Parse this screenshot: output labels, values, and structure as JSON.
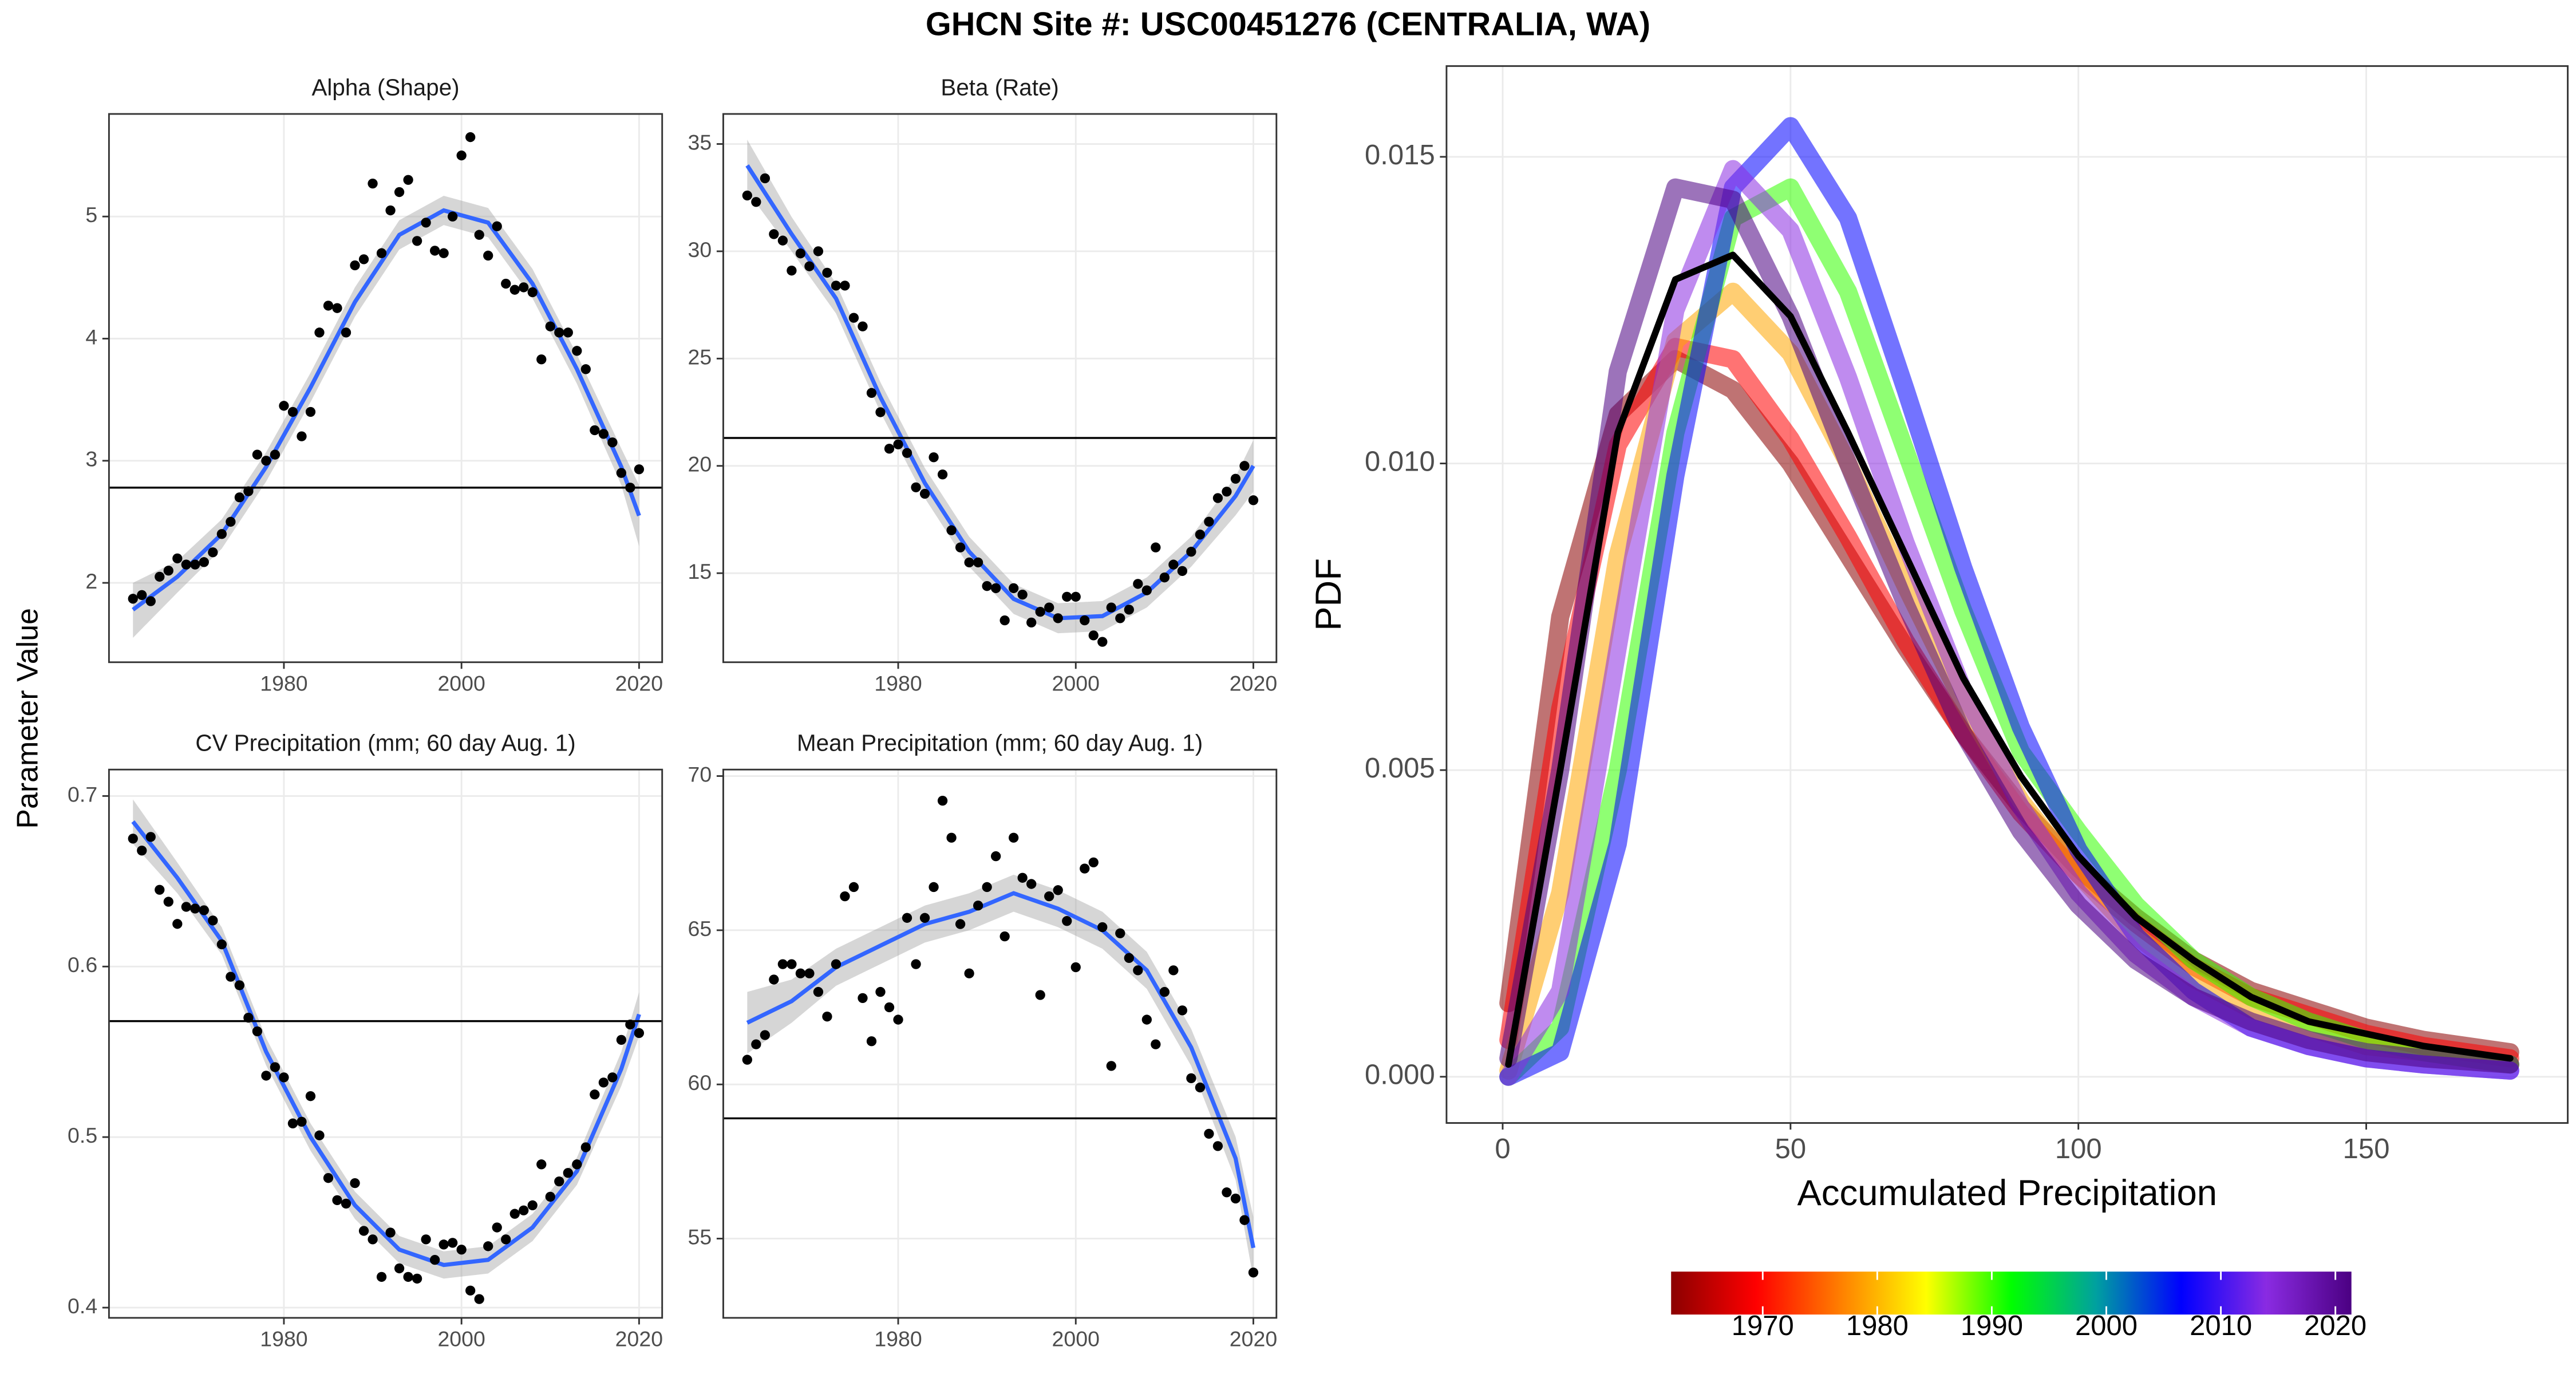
{
  "title": "GHCN Site #: USC00451276 (CENTRALIA, WA)",
  "ylabel": "Parameter Value",
  "chart_data": [
    {
      "type": "scatter",
      "title": "Alpha (Shape)",
      "grid": true,
      "color": "#000000",
      "xlim": [
        1960.3,
        2022.6
      ],
      "xticks": [
        1980,
        2000,
        2020
      ],
      "ylim": [
        1.35,
        5.84
      ],
      "yticks": [
        2,
        3,
        4,
        5
      ],
      "x": [
        1963,
        1964,
        1965,
        1966,
        1967,
        1968,
        1969,
        1970,
        1971,
        1972,
        1973,
        1974,
        1975,
        1976,
        1977,
        1978,
        1979,
        1980,
        1981,
        1982,
        1983,
        1984,
        1985,
        1986,
        1987,
        1988,
        1989,
        1990,
        1991,
        1992,
        1993,
        1994,
        1995,
        1996,
        1997,
        1998,
        1999,
        2000,
        2001,
        2002,
        2003,
        2004,
        2005,
        2006,
        2007,
        2008,
        2009,
        2010,
        2011,
        2012,
        2013,
        2014,
        2015,
        2016,
        2017,
        2018,
        2019,
        2020
      ],
      "values": [
        1.87,
        1.9,
        1.85,
        2.05,
        2.1,
        2.2,
        2.15,
        2.15,
        2.17,
        2.25,
        2.4,
        2.5,
        2.7,
        2.75,
        3.05,
        3.0,
        3.05,
        3.45,
        3.4,
        3.2,
        3.4,
        4.05,
        4.27,
        4.25,
        4.05,
        4.6,
        4.65,
        5.27,
        4.7,
        5.05,
        5.2,
        5.3,
        4.8,
        4.95,
        4.72,
        4.7,
        5.0,
        5.5,
        5.65,
        4.85,
        4.68,
        4.92,
        4.45,
        4.4,
        4.42,
        4.38,
        3.83,
        4.1,
        4.05,
        4.05,
        3.9,
        3.75,
        3.25,
        3.22,
        3.15,
        2.9,
        2.78,
        2.93
      ],
      "hline": 2.78,
      "fit": {
        "color": "#3366ff",
        "band_color": "#999999",
        "x": [
          1963,
          1968,
          1973,
          1978,
          1983,
          1988,
          1993,
          1998,
          2003,
          2008,
          2013,
          2018,
          2020
        ],
        "values": [
          1.78,
          2.05,
          2.4,
          2.95,
          3.6,
          4.3,
          4.85,
          5.05,
          4.95,
          4.45,
          3.75,
          2.95,
          2.55
        ],
        "lower": [
          1.55,
          1.92,
          2.28,
          2.83,
          3.48,
          4.18,
          4.73,
          4.93,
          4.83,
          4.33,
          3.63,
          2.8,
          2.3
        ],
        "upper": [
          2.0,
          2.18,
          2.52,
          3.07,
          3.72,
          4.42,
          4.97,
          5.17,
          5.07,
          4.57,
          3.87,
          3.1,
          2.8
        ]
      }
    },
    {
      "type": "scatter",
      "title": "Beta (Rate)",
      "grid": true,
      "color": "#000000",
      "xlim": [
        1960.3,
        2022.6
      ],
      "xticks": [
        1980,
        2000,
        2020
      ],
      "ylim": [
        10.85,
        36.4
      ],
      "yticks": [
        15,
        20,
        25,
        30,
        35
      ],
      "x": [
        1963,
        1964,
        1965,
        1966,
        1967,
        1968,
        1969,
        1970,
        1971,
        1972,
        1973,
        1974,
        1975,
        1976,
        1977,
        1978,
        1979,
        1980,
        1981,
        1982,
        1983,
        1984,
        1985,
        1986,
        1987,
        1988,
        1989,
        1990,
        1991,
        1992,
        1993,
        1994,
        1995,
        1996,
        1997,
        1998,
        1999,
        2000,
        2001,
        2002,
        2003,
        2004,
        2005,
        2006,
        2007,
        2008,
        2009,
        2010,
        2011,
        2012,
        2013,
        2014,
        2015,
        2016,
        2017,
        2018,
        2019,
        2020
      ],
      "values": [
        32.6,
        32.3,
        33.4,
        30.8,
        30.5,
        29.1,
        29.9,
        29.3,
        30.0,
        29.0,
        28.4,
        28.4,
        26.9,
        26.5,
        23.4,
        22.5,
        20.8,
        21.0,
        20.6,
        19.0,
        18.7,
        20.4,
        19.6,
        17.0,
        16.2,
        15.5,
        15.5,
        14.4,
        14.3,
        12.8,
        14.3,
        14.0,
        12.7,
        13.2,
        13.4,
        12.9,
        13.9,
        13.9,
        12.8,
        12.1,
        11.8,
        13.4,
        12.9,
        13.3,
        14.5,
        14.2,
        16.2,
        14.8,
        15.4,
        15.1,
        16.0,
        16.8,
        17.4,
        18.5,
        18.8,
        19.4,
        20.0,
        18.4
      ],
      "hline": 21.3,
      "fit": {
        "color": "#3366ff",
        "band_color": "#999999",
        "x": [
          1963,
          1968,
          1973,
          1978,
          1983,
          1988,
          1993,
          1998,
          2003,
          2008,
          2013,
          2018,
          2020
        ],
        "values": [
          34.0,
          30.8,
          27.8,
          23.2,
          19.2,
          16.0,
          13.8,
          12.9,
          13.0,
          14.1,
          16.0,
          18.6,
          20.0
        ],
        "lower": [
          32.8,
          30.0,
          27.1,
          22.5,
          18.5,
          15.3,
          13.1,
          12.2,
          12.3,
          13.4,
          15.3,
          17.7,
          18.8
        ],
        "upper": [
          35.2,
          31.6,
          28.5,
          23.9,
          19.9,
          16.7,
          14.5,
          13.6,
          13.7,
          14.8,
          16.7,
          19.5,
          21.2
        ]
      }
    },
    {
      "type": "scatter",
      "title": "CV Precipitation (mm; 60 day Aug. 1)",
      "grid": true,
      "color": "#000000",
      "xlim": [
        1960.3,
        2022.6
      ],
      "xticks": [
        1980,
        2000,
        2020
      ],
      "ylim": [
        0.394,
        0.7155
      ],
      "yticks": [
        0.4,
        0.5,
        0.6,
        0.7
      ],
      "x": [
        1963,
        1964,
        1965,
        1966,
        1967,
        1968,
        1969,
        1970,
        1971,
        1972,
        1973,
        1974,
        1975,
        1976,
        1977,
        1978,
        1979,
        1980,
        1981,
        1982,
        1983,
        1984,
        1985,
        1986,
        1987,
        1988,
        1989,
        1990,
        1991,
        1992,
        1993,
        1994,
        1995,
        1996,
        1997,
        1998,
        1999,
        2000,
        2001,
        2002,
        2003,
        2004,
        2005,
        2006,
        2007,
        2008,
        2009,
        2010,
        2011,
        2012,
        2013,
        2014,
        2015,
        2016,
        2017,
        2018,
        2019,
        2020
      ],
      "values": [
        0.675,
        0.668,
        0.676,
        0.645,
        0.638,
        0.625,
        0.635,
        0.634,
        0.633,
        0.627,
        0.613,
        0.594,
        0.589,
        0.57,
        0.562,
        0.536,
        0.541,
        0.535,
        0.508,
        0.509,
        0.524,
        0.501,
        0.476,
        0.463,
        0.461,
        0.473,
        0.445,
        0.44,
        0.418,
        0.444,
        0.423,
        0.418,
        0.417,
        0.44,
        0.428,
        0.437,
        0.438,
        0.434,
        0.41,
        0.405,
        0.436,
        0.447,
        0.44,
        0.455,
        0.457,
        0.46,
        0.484,
        0.465,
        0.474,
        0.479,
        0.484,
        0.494,
        0.525,
        0.532,
        0.535,
        0.557,
        0.566,
        0.561
      ],
      "hline": 0.568,
      "fit": {
        "color": "#3366ff",
        "band_color": "#999999",
        "x": [
          1963,
          1968,
          1973,
          1978,
          1983,
          1988,
          1993,
          1998,
          2003,
          2008,
          2013,
          2018,
          2020
        ],
        "values": [
          0.685,
          0.652,
          0.615,
          0.55,
          0.5,
          0.46,
          0.434,
          0.425,
          0.428,
          0.447,
          0.48,
          0.54,
          0.572
        ],
        "lower": [
          0.672,
          0.643,
          0.607,
          0.542,
          0.492,
          0.452,
          0.426,
          0.417,
          0.42,
          0.439,
          0.472,
          0.53,
          0.559
        ],
        "upper": [
          0.698,
          0.661,
          0.623,
          0.558,
          0.508,
          0.468,
          0.442,
          0.433,
          0.436,
          0.455,
          0.488,
          0.55,
          0.585
        ]
      }
    },
    {
      "type": "scatter",
      "title": "Mean Precipitation (mm; 60 day Aug. 1)",
      "grid": true,
      "color": "#000000",
      "xlim": [
        1960.3,
        2022.6
      ],
      "xticks": [
        1980,
        2000,
        2020
      ],
      "ylim": [
        52.43,
        70.21
      ],
      "yticks": [
        55,
        60,
        65,
        70
      ],
      "x": [
        1963,
        1964,
        1965,
        1966,
        1967,
        1968,
        1969,
        1970,
        1971,
        1972,
        1973,
        1974,
        1975,
        1976,
        1977,
        1978,
        1979,
        1980,
        1981,
        1982,
        1983,
        1984,
        1985,
        1986,
        1987,
        1988,
        1989,
        1990,
        1991,
        1992,
        1993,
        1994,
        1995,
        1996,
        1997,
        1998,
        1999,
        2000,
        2001,
        2002,
        2003,
        2004,
        2005,
        2006,
        2007,
        2008,
        2009,
        2010,
        2011,
        2012,
        2013,
        2014,
        2015,
        2016,
        2017,
        2018,
        2019,
        2020
      ],
      "values": [
        60.8,
        61.3,
        61.6,
        63.4,
        63.9,
        63.9,
        63.6,
        63.6,
        63.0,
        62.2,
        63.9,
        66.1,
        66.4,
        62.8,
        61.4,
        63.0,
        62.5,
        62.1,
        65.4,
        63.9,
        65.4,
        66.4,
        69.2,
        68.0,
        65.2,
        63.6,
        65.8,
        66.4,
        67.4,
        64.8,
        68.0,
        66.7,
        66.5,
        62.9,
        66.1,
        66.3,
        65.3,
        63.8,
        67.0,
        67.2,
        65.1,
        60.6,
        64.9,
        64.1,
        63.7,
        62.1,
        61.3,
        63.0,
        63.7,
        62.4,
        60.2,
        59.9,
        58.4,
        58.0,
        56.5,
        56.3,
        55.6,
        53.9
      ],
      "hline": 58.9,
      "fit": {
        "color": "#3366ff",
        "band_color": "#999999",
        "x": [
          1963,
          1968,
          1973,
          1978,
          1983,
          1988,
          1993,
          1998,
          2003,
          2008,
          2013,
          2018,
          2020
        ],
        "values": [
          62.0,
          62.7,
          63.8,
          64.5,
          65.2,
          65.6,
          66.2,
          65.7,
          65.0,
          63.7,
          61.2,
          57.6,
          54.7
        ],
        "lower": [
          61.0,
          62.0,
          63.2,
          63.9,
          64.6,
          65.0,
          65.6,
          65.1,
          64.4,
          63.1,
          60.6,
          56.9,
          53.7
        ],
        "upper": [
          63.0,
          63.4,
          64.4,
          65.1,
          65.8,
          66.2,
          66.8,
          66.3,
          65.6,
          64.3,
          61.8,
          58.3,
          55.7
        ]
      }
    },
    {
      "type": "line",
      "xlabel": "Accumulated Precipitation",
      "ylabel": "PDF",
      "grid": true,
      "xlim": [
        -9.75,
        185
      ],
      "xticks": [
        0,
        50,
        100,
        150
      ],
      "ylim": [
        -0.000754,
        0.01648
      ],
      "yticks": [
        {
          "value": 0,
          "label": "0.000"
        },
        {
          "value": 0.005,
          "label": "0.005"
        },
        {
          "value": 0.01,
          "label": "0.010"
        },
        {
          "value": 0.015,
          "label": "0.015"
        }
      ],
      "x": [
        1,
        10,
        20,
        30,
        40,
        50,
        60,
        70,
        80,
        90,
        100,
        110,
        120,
        130,
        140,
        150,
        160,
        175
      ],
      "series": [
        {
          "color": "#8b0000",
          "values": [
            0.0012,
            0.0075,
            0.0108,
            0.0117,
            0.0112,
            0.01,
            0.0085,
            0.007,
            0.0056,
            0.0044,
            0.0034,
            0.0026,
            0.0019,
            0.0014,
            0.0011,
            0.0008,
            0.0006,
            0.0004
          ]
        },
        {
          "color": "#ff0000",
          "values": [
            0.0006,
            0.006,
            0.0103,
            0.0119,
            0.0117,
            0.0104,
            0.0088,
            0.0071,
            0.0056,
            0.0043,
            0.0033,
            0.0025,
            0.0018,
            0.0013,
            0.001,
            0.0007,
            0.0005,
            0.0003
          ]
        },
        {
          "color": "#ffa500",
          "values": [
            0.0001,
            0.003,
            0.0085,
            0.012,
            0.0128,
            0.0118,
            0.01,
            0.008,
            0.0061,
            0.0045,
            0.0033,
            0.0023,
            0.0016,
            0.0011,
            0.0008,
            0.0005,
            0.0004,
            0.0002
          ]
        },
        {
          "color": "#33ff00",
          "values": [
            0,
            0.0008,
            0.005,
            0.0105,
            0.014,
            0.0145,
            0.0128,
            0.0102,
            0.0076,
            0.0053,
            0.004,
            0.0028,
            0.0019,
            0.0013,
            0.0009,
            0.0006,
            0.0004,
            0.0002
          ]
        },
        {
          "color": "#0000ff",
          "values": [
            0,
            0.0004,
            0.0038,
            0.0098,
            0.0145,
            0.0155,
            0.014,
            0.0112,
            0.0083,
            0.0057,
            0.0037,
            0.0023,
            0.0014,
            0.0008,
            0.0005,
            0.0003,
            0.0002,
            0.0001
          ]
        },
        {
          "color": "#8a2be2",
          "values": [
            0,
            0.0014,
            0.007,
            0.0125,
            0.0148,
            0.0138,
            0.0114,
            0.0087,
            0.0063,
            0.0044,
            0.003,
            0.002,
            0.0013,
            0.0008,
            0.0005,
            0.0003,
            0.0002,
            0.0001
          ]
        },
        {
          "color": "#4b0082",
          "values": [
            0.0003,
            0.005,
            0.0115,
            0.0145,
            0.0143,
            0.0124,
            0.01,
            0.0077,
            0.0056,
            0.004,
            0.0028,
            0.0019,
            0.0013,
            0.0009,
            0.0006,
            0.0004,
            0.0003,
            0.0002
          ]
        },
        {
          "color": "#000000",
          "values": [
            0.0002,
            0.005,
            0.0105,
            0.013,
            0.0134,
            0.0124,
            0.0105,
            0.0085,
            0.0065,
            0.0049,
            0.0036,
            0.0026,
            0.0019,
            0.0013,
            0.0009,
            0.0007,
            0.0005,
            0.0003
          ]
        }
      ],
      "colorbar": {
        "lim": [
          1962,
          2021.4
        ],
        "ticks": [
          1970,
          1980,
          1990,
          2000,
          2010,
          2020
        ],
        "colors": [
          "#8b0000",
          "#ff0000",
          "#ff8000",
          "#ffff00",
          "#00ff00",
          "#00a0a0",
          "#0000ff",
          "#8a2be2",
          "#4b0082"
        ]
      }
    }
  ]
}
